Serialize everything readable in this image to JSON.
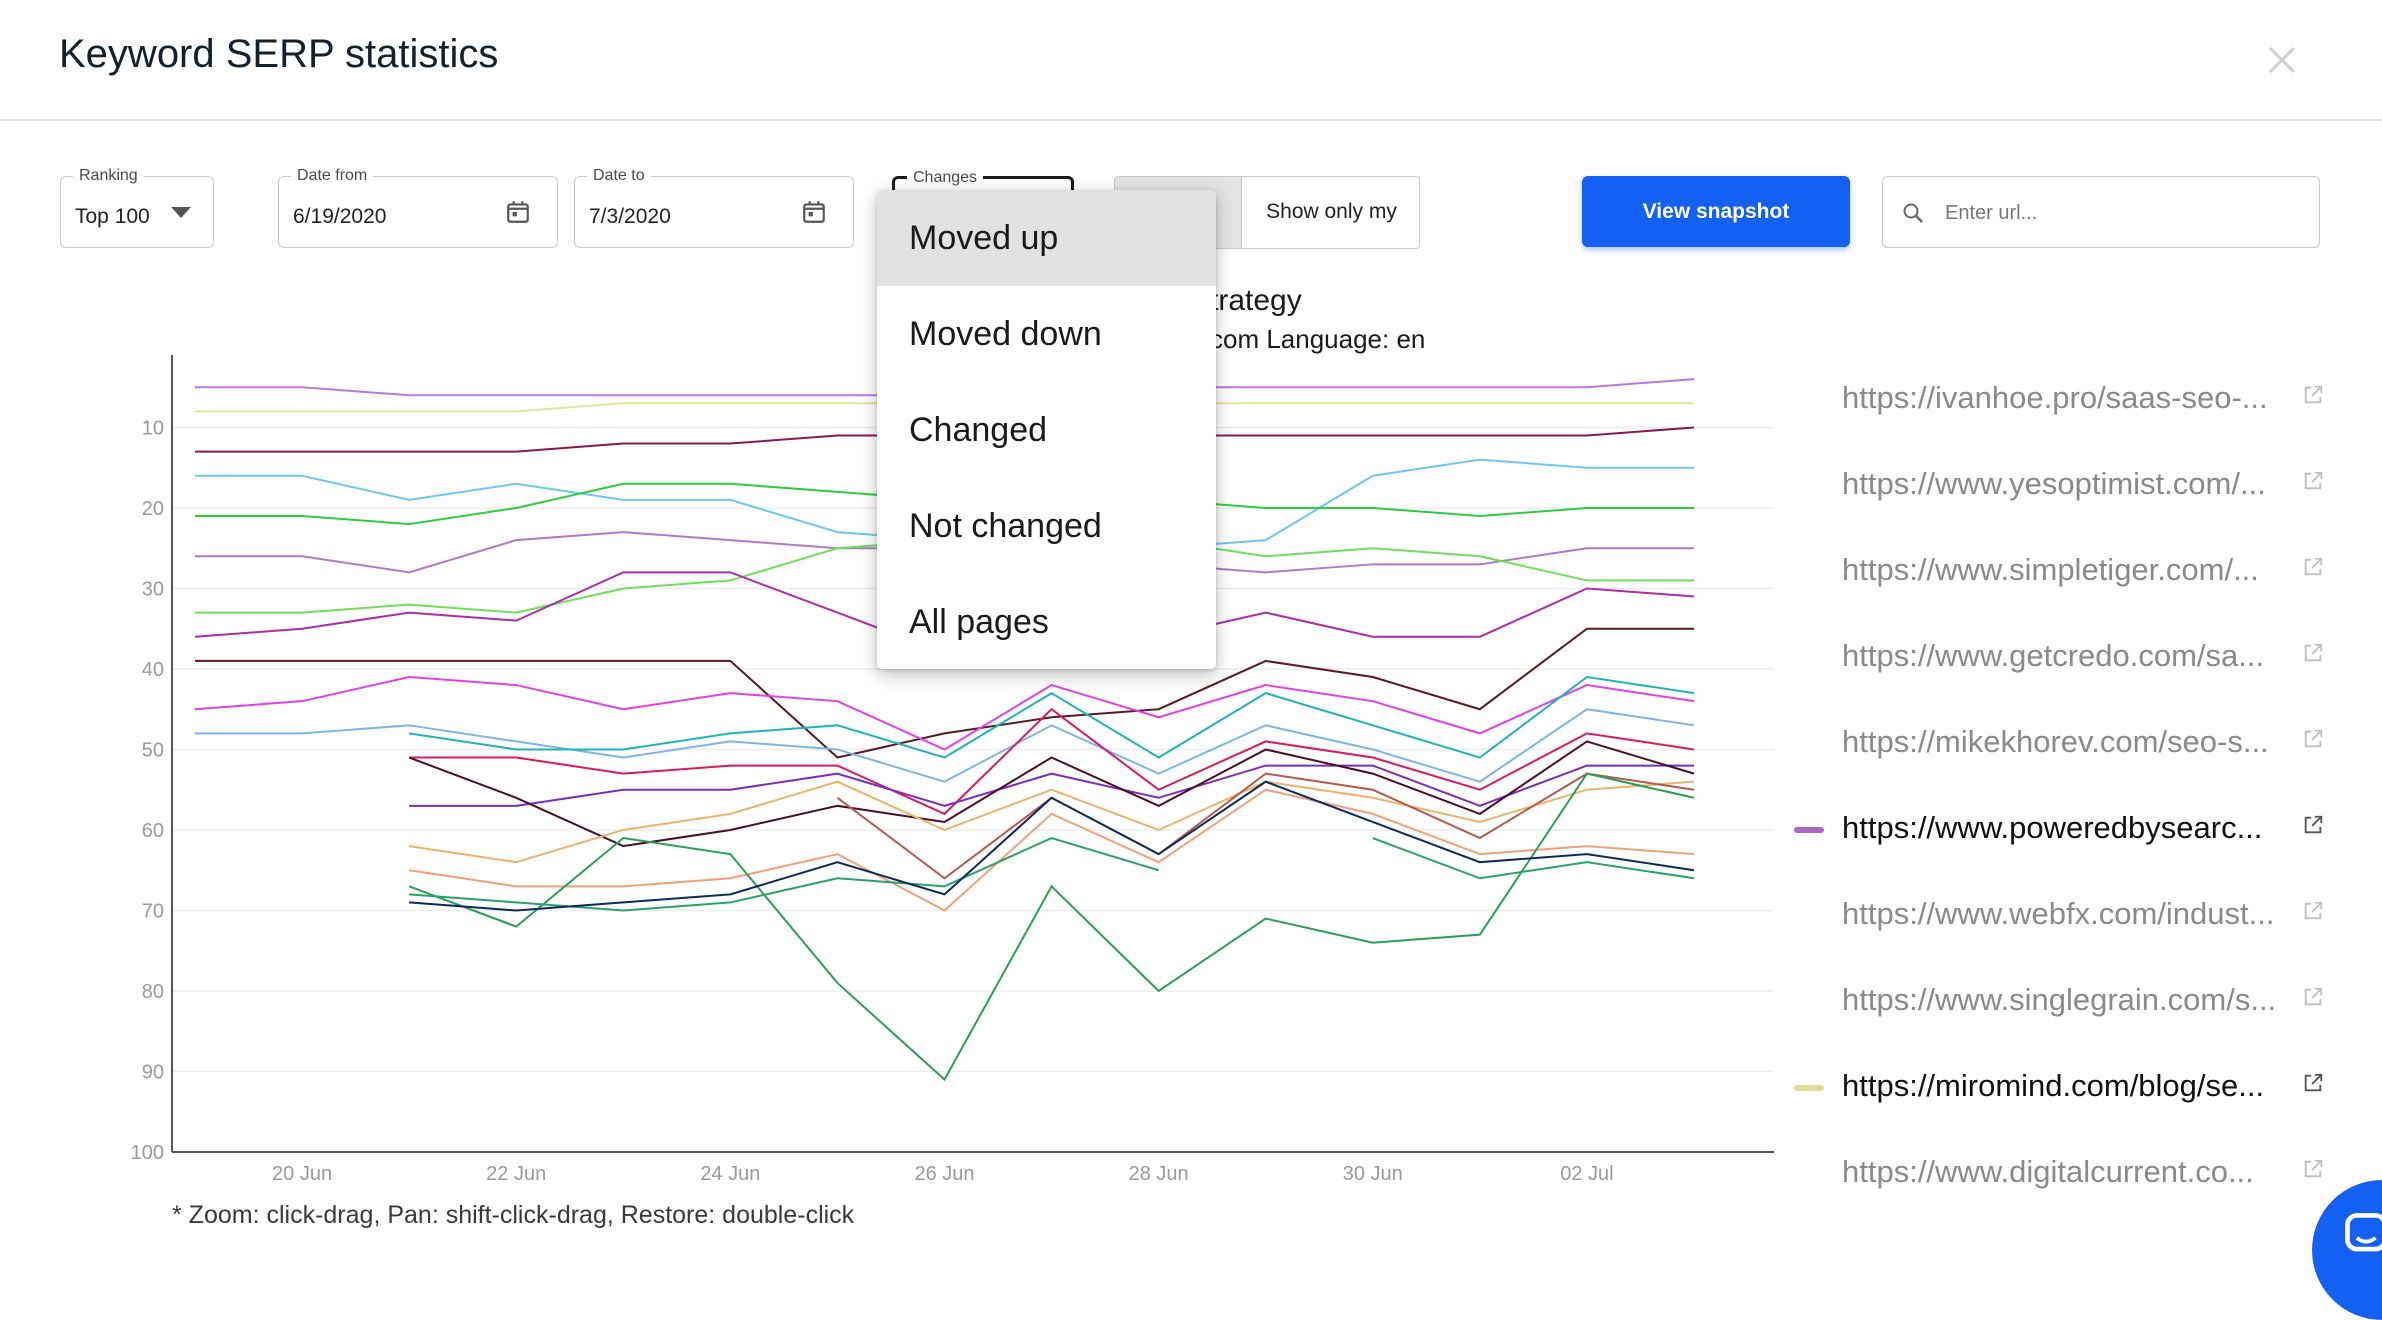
{
  "header": {
    "title": "Keyword SERP statistics"
  },
  "filters": {
    "ranking": {
      "label": "Ranking",
      "value": "Top 100"
    },
    "date_from": {
      "label": "Date from",
      "value": "6/19/2020"
    },
    "date_to": {
      "label": "Date to",
      "value": "7/3/2020"
    },
    "changes": {
      "label": "Changes"
    }
  },
  "toggle": {
    "right_label": "Show only my"
  },
  "actions": {
    "view_snapshot": "View snapshot"
  },
  "search": {
    "placeholder": "Enter url..."
  },
  "chart_header": {
    "title_fragment": "trategy",
    "subtitle_fragment": "com Language: en"
  },
  "dropdown": {
    "options": [
      "Moved up",
      "Moved down",
      "Changed",
      "Not changed",
      "All pages"
    ],
    "selected": "Moved up"
  },
  "footnote": "* Zoom: click-drag, Pan: shift-click-drag, Restore: double-click",
  "legend": [
    {
      "url": "https://ivanhoe.pro/saas-seo-...",
      "highlighted": false,
      "color": ""
    },
    {
      "url": "https://www.yesoptimist.com/...",
      "highlighted": false,
      "color": ""
    },
    {
      "url": "https://www.simpletiger.com/...",
      "highlighted": false,
      "color": ""
    },
    {
      "url": "https://www.getcredo.com/sa...",
      "highlighted": false,
      "color": ""
    },
    {
      "url": "https://mikekhorev.com/seo-s...",
      "highlighted": false,
      "color": ""
    },
    {
      "url": "https://www.poweredbysearc...",
      "highlighted": true,
      "color": "#b266c8"
    },
    {
      "url": "https://www.webfx.com/indust...",
      "highlighted": false,
      "color": ""
    },
    {
      "url": "https://www.singlegrain.com/s...",
      "highlighted": false,
      "color": ""
    },
    {
      "url": "https://miromind.com/blog/se...",
      "highlighted": true,
      "color": "#e0e09a"
    },
    {
      "url": "https://www.digitalcurrent.co...",
      "highlighted": false,
      "color": ""
    }
  ],
  "colors": {
    "primary": "#1460f2",
    "dropdown_selected": "#e2e2e2"
  },
  "chart_data": {
    "type": "line",
    "x": [
      "19 Jun",
      "20 Jun",
      "21 Jun",
      "22 Jun",
      "23 Jun",
      "24 Jun",
      "25 Jun",
      "26 Jun",
      "27 Jun",
      "28 Jun",
      "29 Jun",
      "30 Jun",
      "01 Jul",
      "02 Jul",
      "03 Jul"
    ],
    "x_tick_labels": [
      "20 Jun",
      "22 Jun",
      "24 Jun",
      "26 Jun",
      "28 Jun",
      "30 Jun",
      "02 Jul"
    ],
    "y_tick_labels": [
      "10",
      "20",
      "30",
      "40",
      "50",
      "60",
      "70",
      "80",
      "90",
      "100"
    ],
    "ylim": [
      100,
      1
    ],
    "y_reversed": true,
    "grid": true,
    "series": [
      {
        "color": "#b57be0",
        "values": [
          5,
          5,
          6,
          6,
          6,
          6,
          6,
          6,
          5,
          5,
          5,
          5,
          5,
          5,
          4
        ]
      },
      {
        "color": "#e4e49a",
        "values": [
          8,
          8,
          8,
          8,
          7,
          7,
          7,
          7,
          7,
          7,
          7,
          7,
          7,
          7,
          7
        ]
      },
      {
        "color": "#8b1a4b",
        "values": [
          13,
          13,
          13,
          13,
          12,
          12,
          11,
          11,
          11,
          11,
          11,
          11,
          11,
          11,
          10
        ]
      },
      {
        "color": "#6dc9f0",
        "values": [
          16,
          16,
          19,
          17,
          19,
          19,
          23,
          24,
          25,
          25,
          24,
          16,
          14,
          15,
          15
        ]
      },
      {
        "color": "#2ecc40",
        "values": [
          21,
          21,
          22,
          20,
          17,
          17,
          18,
          19,
          19,
          19,
          20,
          20,
          21,
          20,
          20
        ]
      },
      {
        "color": "#b07bc4",
        "values": [
          26,
          26,
          28,
          24,
          23,
          24,
          25,
          25,
          27,
          27,
          28,
          27,
          27,
          25,
          25
        ]
      },
      {
        "color": "#6ee05a",
        "values": [
          33,
          33,
          32,
          33,
          30,
          29,
          25,
          24,
          24,
          24,
          26,
          25,
          26,
          29,
          29
        ]
      },
      {
        "color": "#b02ca8",
        "values": [
          36,
          35,
          33,
          34,
          28,
          28,
          33,
          38,
          38,
          36,
          33,
          36,
          36,
          30,
          31
        ]
      },
      {
        "color": "#5a1a22",
        "values": [
          39,
          39,
          39,
          39,
          39,
          39,
          51,
          48,
          46,
          45,
          39,
          41,
          45,
          35,
          35
        ]
      },
      {
        "color": "#e040e8",
        "values": [
          45,
          44,
          41,
          42,
          45,
          43,
          44,
          50,
          42,
          46,
          42,
          44,
          48,
          42,
          44
        ]
      },
      {
        "color": "#7fb5e6",
        "values": [
          48,
          48,
          47,
          49,
          51,
          49,
          50,
          54,
          47,
          53,
          47,
          50,
          54,
          45,
          47
        ]
      },
      {
        "color": "#1fb5b5",
        "values": [
          null,
          null,
          48,
          50,
          50,
          48,
          47,
          51,
          43,
          51,
          43,
          47,
          51,
          41,
          43
        ]
      },
      {
        "color": "#d81b60",
        "values": [
          null,
          null,
          51,
          51,
          53,
          52,
          52,
          58,
          45,
          55,
          49,
          51,
          55,
          48,
          50
        ]
      },
      {
        "color": "#7a2cc0",
        "values": [
          null,
          null,
          57,
          57,
          55,
          55,
          53,
          57,
          53,
          56,
          52,
          52,
          57,
          52,
          52
        ]
      },
      {
        "color": "#4a0e2a",
        "values": [
          null,
          null,
          51,
          56,
          62,
          60,
          57,
          59,
          51,
          57,
          50,
          53,
          58,
          49,
          53
        ]
      },
      {
        "color": "#e8b56a",
        "values": [
          null,
          null,
          62,
          64,
          60,
          58,
          54,
          60,
          55,
          60,
          54,
          56,
          59,
          55,
          54
        ]
      },
      {
        "color": "#b55a4a",
        "values": [
          null,
          null,
          null,
          null,
          null,
          null,
          56,
          66,
          56,
          63,
          53,
          55,
          61,
          53,
          55
        ]
      },
      {
        "color": "#f0a07a",
        "values": [
          null,
          null,
          65,
          67,
          67,
          66,
          63,
          70,
          58,
          64,
          55,
          58,
          63,
          62,
          63
        ]
      },
      {
        "color": "#2aa055",
        "values": [
          null,
          null,
          67,
          72,
          61,
          63,
          79,
          91,
          67,
          80,
          71,
          74,
          73,
          53,
          56
        ]
      },
      {
        "color": "#29a36a",
        "values": [
          null,
          null,
          68,
          69,
          70,
          69,
          66,
          67,
          61,
          65,
          null,
          61,
          66,
          64,
          66
        ]
      },
      {
        "color": "#0d2a5a",
        "values": [
          null,
          null,
          69,
          70,
          69,
          68,
          64,
          68,
          56,
          63,
          54,
          59,
          64,
          63,
          65
        ]
      }
    ]
  }
}
